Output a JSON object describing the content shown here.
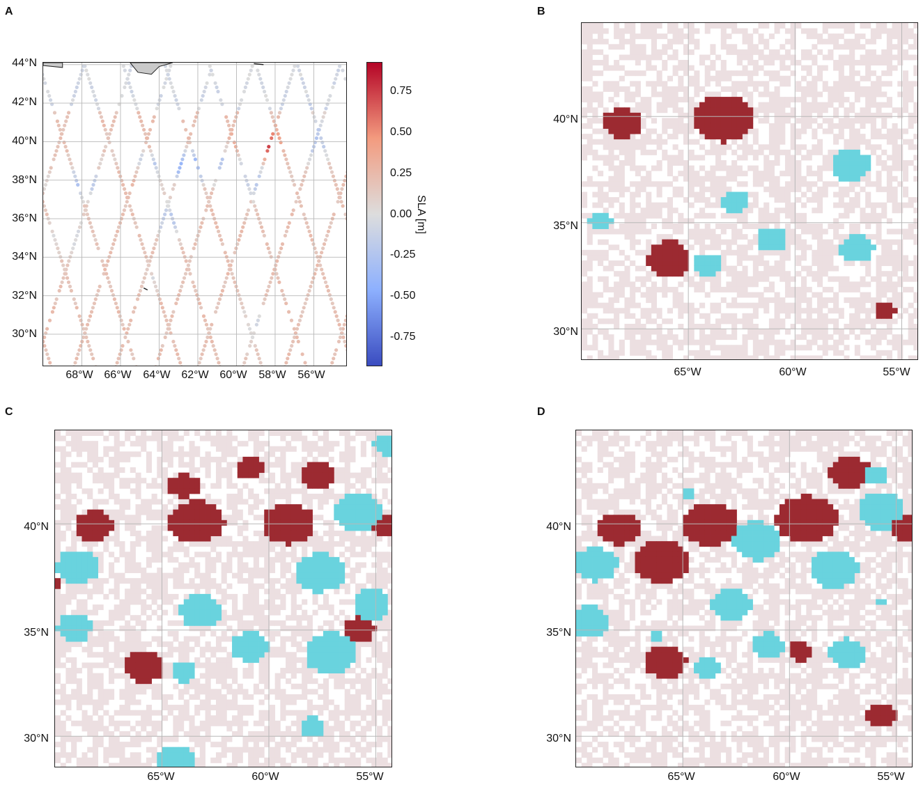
{
  "panels": {
    "a": {
      "label": "A",
      "y_ticks": [
        "44°N",
        "42°N",
        "40°N",
        "38°N",
        "36°N",
        "34°N",
        "32°N",
        "30°N"
      ],
      "x_ticks": [
        "68°W",
        "66°W",
        "64°W",
        "62°W",
        "60°W",
        "58°W",
        "56°W"
      ],
      "colorbar": {
        "title": "SLA [m]",
        "ticks": [
          "0.75",
          "0.50",
          "0.25",
          "0.00",
          "-0.25",
          "-0.50",
          "-0.75"
        ],
        "colors": [
          "#3a4cc0",
          "#8db0fe",
          "#dddddd",
          "#f39b7f",
          "#b40426"
        ]
      }
    },
    "b": {
      "label": "B",
      "y_ticks": [
        "40°N",
        "35°N",
        "30°N"
      ],
      "x_ticks": [
        "65°W",
        "60°W",
        "55°W"
      ]
    },
    "c": {
      "label": "C",
      "y_ticks": [
        "40°N",
        "35°N",
        "30°N"
      ],
      "x_ticks": [
        "65°W",
        "60°W",
        "55°W"
      ]
    },
    "d": {
      "label": "D",
      "y_ticks": [
        "40°N",
        "35°N",
        "30°N"
      ],
      "x_ticks": [
        "65°W",
        "60°W",
        "55°W"
      ]
    }
  },
  "map_extent": {
    "lon": [
      -70,
      -54.2
    ],
    "lat": [
      28.5,
      44.4
    ]
  },
  "colors": {
    "background_cell": "#ecdfe1",
    "warm_eddy": "#9c2a31",
    "cold_eddy": "#69d3de",
    "grid": "#b8b8b8",
    "land": "#c9c9c9"
  },
  "eddies": {
    "b": [
      {
        "type": "warm",
        "lon": -68.1,
        "lat": 39.7,
        "r": 0.7
      },
      {
        "type": "warm",
        "lon": -63.3,
        "lat": 39.9,
        "r": 1.1
      },
      {
        "type": "warm",
        "lon": -65.9,
        "lat": 33.3,
        "r": 0.85
      },
      {
        "type": "warm",
        "lon": -55.8,
        "lat": 30.9,
        "r": 0.45
      },
      {
        "type": "cold",
        "lon": -57.4,
        "lat": 37.7,
        "r": 0.75
      },
      {
        "type": "cold",
        "lon": -62.8,
        "lat": 36.0,
        "r": 0.55
      },
      {
        "type": "cold",
        "lon": -69.1,
        "lat": 35.1,
        "r": 0.45
      },
      {
        "type": "cold",
        "lon": -61.1,
        "lat": 34.2,
        "r": 0.6
      },
      {
        "type": "cold",
        "lon": -57.1,
        "lat": 33.8,
        "r": 0.65
      },
      {
        "type": "cold",
        "lon": -64.1,
        "lat": 33.0,
        "r": 0.55
      }
    ],
    "c": [
      {
        "type": "warm",
        "lon": -68.2,
        "lat": 39.9,
        "r": 0.7
      },
      {
        "type": "warm",
        "lon": -64.0,
        "lat": 41.8,
        "r": 0.55
      },
      {
        "type": "warm",
        "lon": -60.9,
        "lat": 42.6,
        "r": 0.5
      },
      {
        "type": "warm",
        "lon": -57.7,
        "lat": 42.3,
        "r": 0.6
      },
      {
        "type": "warm",
        "lon": -63.4,
        "lat": 40.1,
        "r": 1.0
      },
      {
        "type": "warm",
        "lon": -59.1,
        "lat": 40.0,
        "r": 0.95
      },
      {
        "type": "warm",
        "lon": -54.5,
        "lat": 39.9,
        "r": 0.55
      },
      {
        "type": "warm",
        "lon": -65.8,
        "lat": 33.3,
        "r": 0.75
      },
      {
        "type": "warm",
        "lon": -55.8,
        "lat": 35.0,
        "r": 0.6
      },
      {
        "type": "warm",
        "lon": -70.0,
        "lat": 37.3,
        "r": 0.25
      },
      {
        "type": "cold",
        "lon": -55.8,
        "lat": 40.5,
        "r": 0.9
      },
      {
        "type": "cold",
        "lon": -68.9,
        "lat": 38.0,
        "r": 0.8
      },
      {
        "type": "cold",
        "lon": -57.6,
        "lat": 37.7,
        "r": 0.9
      },
      {
        "type": "cold",
        "lon": -54.5,
        "lat": 43.7,
        "r": 0.45
      },
      {
        "type": "cold",
        "lon": -63.2,
        "lat": 35.9,
        "r": 0.8
      },
      {
        "type": "cold",
        "lon": -55.2,
        "lat": 36.2,
        "r": 0.7
      },
      {
        "type": "cold",
        "lon": -69.1,
        "lat": 35.1,
        "r": 0.65
      },
      {
        "type": "cold",
        "lon": -60.9,
        "lat": 34.2,
        "r": 0.7
      },
      {
        "type": "cold",
        "lon": -57.1,
        "lat": 33.9,
        "r": 1.0
      },
      {
        "type": "cold",
        "lon": -64.0,
        "lat": 33.0,
        "r": 0.5
      },
      {
        "type": "cold",
        "lon": -58.0,
        "lat": 30.4,
        "r": 0.5
      },
      {
        "type": "cold",
        "lon": -64.3,
        "lat": 28.8,
        "r": 0.8
      }
    ],
    "d": [
      {
        "type": "warm",
        "lon": -68.0,
        "lat": 39.8,
        "r": 0.75
      },
      {
        "type": "warm",
        "lon": -66.0,
        "lat": 38.2,
        "r": 1.0
      },
      {
        "type": "warm",
        "lon": -63.7,
        "lat": 40.0,
        "r": 1.0
      },
      {
        "type": "warm",
        "lon": -59.2,
        "lat": 40.2,
        "r": 1.1
      },
      {
        "type": "warm",
        "lon": -57.2,
        "lat": 42.4,
        "r": 0.75
      },
      {
        "type": "warm",
        "lon": -54.5,
        "lat": 39.8,
        "r": 0.6
      },
      {
        "type": "warm",
        "lon": -65.8,
        "lat": 33.5,
        "r": 0.8
      },
      {
        "type": "warm",
        "lon": -59.5,
        "lat": 34.0,
        "r": 0.45
      },
      {
        "type": "warm",
        "lon": -55.7,
        "lat": 31.0,
        "r": 0.6
      },
      {
        "type": "cold",
        "lon": -55.7,
        "lat": 40.6,
        "r": 0.85
      },
      {
        "type": "cold",
        "lon": -56.0,
        "lat": 42.3,
        "r": 0.45
      },
      {
        "type": "cold",
        "lon": -64.8,
        "lat": 41.4,
        "r": 0.25
      },
      {
        "type": "cold",
        "lon": -61.5,
        "lat": 39.2,
        "r": 0.9
      },
      {
        "type": "cold",
        "lon": -69.1,
        "lat": 38.1,
        "r": 0.8
      },
      {
        "type": "cold",
        "lon": -57.9,
        "lat": 37.9,
        "r": 0.9
      },
      {
        "type": "cold",
        "lon": -62.7,
        "lat": 36.2,
        "r": 0.75
      },
      {
        "type": "cold",
        "lon": -69.4,
        "lat": 35.4,
        "r": 0.75
      },
      {
        "type": "cold",
        "lon": -61.0,
        "lat": 34.3,
        "r": 0.6
      },
      {
        "type": "cold",
        "lon": -57.3,
        "lat": 33.9,
        "r": 0.7
      },
      {
        "type": "cold",
        "lon": -63.8,
        "lat": 33.2,
        "r": 0.5
      },
      {
        "type": "cold",
        "lon": -66.2,
        "lat": 34.7,
        "r": 0.3
      },
      {
        "type": "cold",
        "lon": -55.6,
        "lat": 36.3,
        "r": 0.2
      }
    ]
  }
}
